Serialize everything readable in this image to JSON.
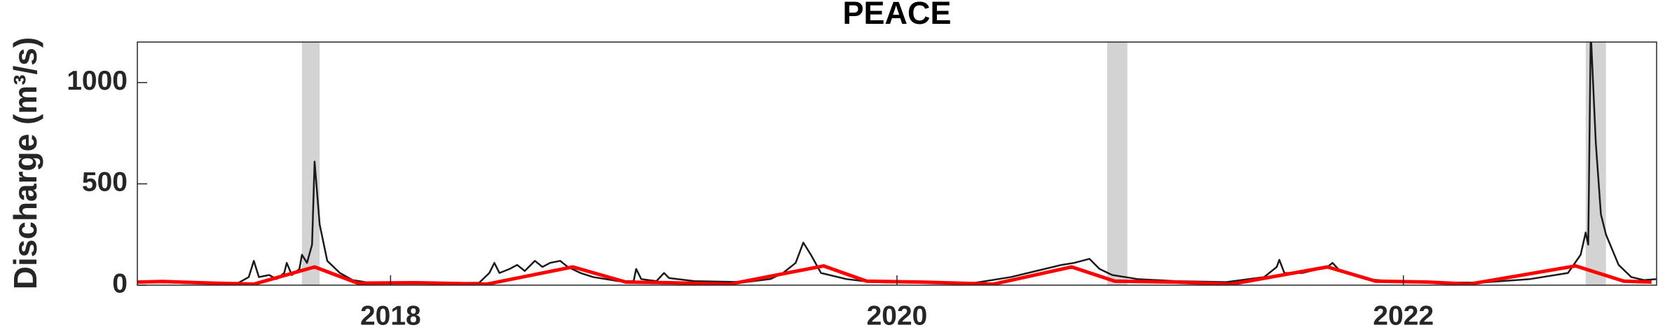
{
  "chart_data": {
    "type": "line",
    "title": "PEACE",
    "y_label": "Discharge (m³/s)",
    "xlim": [
      2017,
      2023
    ],
    "xticks": [
      2018,
      2020,
      2022
    ],
    "ylim": [
      0,
      1200
    ],
    "yticks": [
      0,
      500,
      1000
    ],
    "shaded_spans": [
      [
        2017.65,
        2017.72
      ],
      [
        2020.83,
        2020.91
      ],
      [
        2022.72,
        2022.8
      ]
    ],
    "shade_color": "#d3d3d3",
    "series": [
      {
        "color": "#1a1a1a",
        "x": [
          2017.0,
          2017.1,
          2017.2,
          2017.3,
          2017.4,
          2017.44,
          2017.46,
          2017.48,
          2017.52,
          2017.55,
          2017.58,
          2017.59,
          2017.61,
          2017.64,
          2017.65,
          2017.67,
          2017.69,
          2017.7,
          2017.72,
          2017.75,
          2017.8,
          2017.85,
          2017.9,
          2018.0,
          2018.2,
          2018.35,
          2018.39,
          2018.41,
          2018.43,
          2018.47,
          2018.5,
          2018.53,
          2018.57,
          2018.6,
          2018.63,
          2018.67,
          2018.7,
          2018.75,
          2018.8,
          2018.9,
          2018.96,
          2018.97,
          2018.99,
          2019.05,
          2019.08,
          2019.1,
          2019.2,
          2019.4,
          2019.5,
          2019.55,
          2019.6,
          2019.63,
          2019.66,
          2019.7,
          2019.8,
          2019.9,
          2020.1,
          2020.3,
          2020.45,
          2020.55,
          2020.65,
          2020.7,
          2020.76,
          2020.8,
          2020.85,
          2020.95,
          2021.1,
          2021.3,
          2021.45,
          2021.5,
          2021.51,
          2021.53,
          2021.6,
          2021.7,
          2021.72,
          2021.75,
          2021.85,
          2022.0,
          2022.3,
          2022.5,
          2022.65,
          2022.7,
          2022.72,
          2022.73,
          2022.74,
          2022.76,
          2022.78,
          2022.8,
          2022.85,
          2022.9,
          2022.95,
          2023.0
        ],
        "values": [
          15,
          14,
          10,
          8,
          12,
          40,
          120,
          40,
          50,
          30,
          60,
          110,
          50,
          80,
          150,
          110,
          200,
          610,
          300,
          120,
          60,
          25,
          15,
          12,
          10,
          12,
          60,
          110,
          60,
          80,
          100,
          70,
          120,
          90,
          110,
          120,
          90,
          60,
          40,
          20,
          20,
          80,
          30,
          20,
          60,
          35,
          20,
          15,
          30,
          60,
          110,
          210,
          150,
          60,
          30,
          15,
          12,
          10,
          40,
          70,
          100,
          110,
          130,
          80,
          50,
          30,
          20,
          15,
          40,
          90,
          125,
          60,
          60,
          90,
          110,
          70,
          30,
          15,
          12,
          30,
          60,
          150,
          260,
          200,
          1250,
          700,
          350,
          250,
          100,
          40,
          25,
          30
        ]
      },
      {
        "color": "#ff0000",
        "x": [
          2017.0,
          2017.1,
          2017.3,
          2017.46,
          2017.7,
          2017.87,
          2018.1,
          2018.38,
          2018.72,
          2018.93,
          2019.1,
          2019.34,
          2019.71,
          2019.88,
          2020.1,
          2020.38,
          2020.69,
          2020.86,
          2021.1,
          2021.32,
          2021.7,
          2021.89,
          2022.1,
          2022.26,
          2022.68,
          2022.87,
          2022.98
        ],
        "values": [
          15,
          18,
          10,
          5,
          90,
          10,
          12,
          5,
          90,
          15,
          12,
          5,
          95,
          20,
          15,
          5,
          90,
          20,
          15,
          5,
          90,
          20,
          15,
          5,
          95,
          20,
          15
        ]
      }
    ]
  }
}
